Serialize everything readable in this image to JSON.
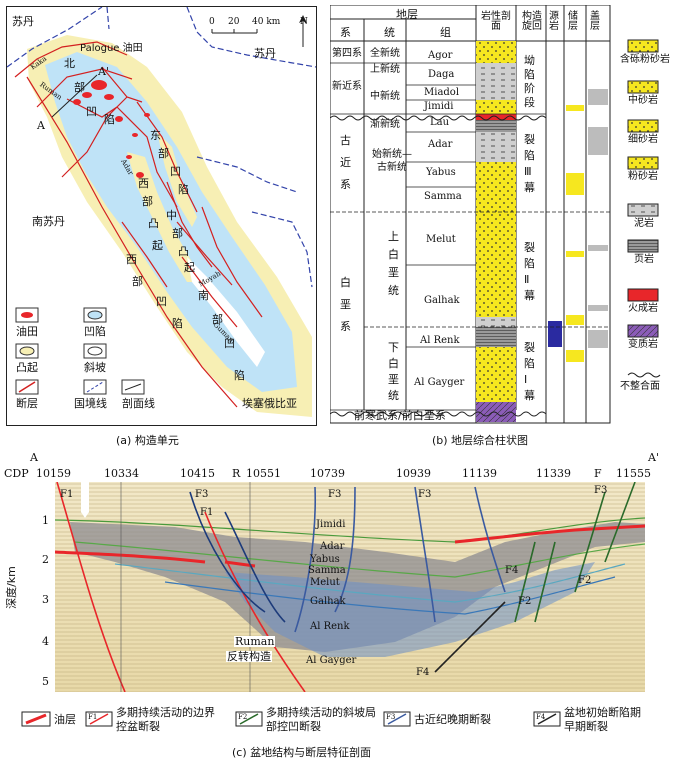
{
  "panel_a": {
    "caption": "(a) 构造单元",
    "countries": [
      "苏丹",
      "苏丹",
      "南苏丹",
      "埃塞俄比亚"
    ],
    "oilfield_label": "Palogue 油田",
    "scale_ticks": [
      "0",
      "20",
      "40 km"
    ],
    "north": "N",
    "section_ends": [
      "A",
      "A'"
    ],
    "units": [
      "北",
      "部",
      "凹",
      "陷",
      "东",
      "部",
      "凹",
      "陷",
      "西",
      "部",
      "凸",
      "起",
      "中",
      "部",
      "凸",
      "起",
      "西",
      "部",
      "凹",
      "陷",
      "南",
      "部",
      "凹",
      "陷"
    ],
    "fault_names": [
      "Kaka",
      "Ruman",
      "Adar",
      "Moyah",
      "Gumam"
    ],
    "legend": [
      {
        "label": "油田",
        "color": "#e8262a",
        "shape": "blob"
      },
      {
        "label": "凹陷",
        "color": "#bfe3f7",
        "shape": "oval"
      },
      {
        "label": "凸起",
        "color": "#f7efb4",
        "shape": "oval"
      },
      {
        "label": "斜坡",
        "color": "#ffffff",
        "shape": "oval"
      },
      {
        "label": "断层",
        "color": "#d32020",
        "shape": "line"
      },
      {
        "label": "国境线",
        "color": "#3344aa",
        "shape": "dash"
      },
      {
        "label": "剖面线",
        "color": "#222222",
        "shape": "section"
      }
    ]
  },
  "panel_b": {
    "caption": "(b) 地层综合柱状图",
    "header": {
      "strata": "地层",
      "system": "系",
      "series": "统",
      "formation": "组",
      "lithology": "岩性剖面",
      "cycle": "构造旋回",
      "source": "源岩",
      "reservoir": "储层",
      "seal": "盖层"
    },
    "systems": [
      "第四系",
      "新近系",
      "古近系",
      "白垩系"
    ],
    "series": [
      "全新统",
      "上新统",
      "中新统",
      "渐新统",
      "始新统—古新统",
      "上白垩统",
      "下白垩统"
    ],
    "formations": [
      "Agor",
      "Daga",
      "Miadol",
      "Jimidi",
      "Lau",
      "Adar",
      "Yabus",
      "Samma",
      "Melut",
      "Galhak",
      "Al Renk",
      "Al Gayger"
    ],
    "cycles": [
      "坳陷阶段",
      "裂陷Ⅲ幕",
      "裂陷Ⅱ幕",
      "裂陷Ⅰ幕"
    ],
    "basement": "前寒武系/前白垩系",
    "legend": [
      {
        "label": "含砾粉砂岩",
        "color": "#f6e71f"
      },
      {
        "label": "中砂岩",
        "color": "#f6e71f"
      },
      {
        "label": "细砂岩",
        "color": "#f6e71f"
      },
      {
        "label": "粉砂岩",
        "color": "#f6e71f"
      },
      {
        "label": "泥岩",
        "color": "#cfcfcf"
      },
      {
        "label": "页岩",
        "color": "#999999"
      },
      {
        "label": "火成岩",
        "color": "#e8262a"
      },
      {
        "label": "变质岩",
        "color": "#8b5cb8"
      },
      {
        "label": "不整合面",
        "color": "#ffffff"
      }
    ]
  },
  "panel_c": {
    "caption": "(c) 盆地结构与断层特征剖面",
    "left_end": "A",
    "right_end": "A'",
    "cdp_title": "CDP",
    "cdp_values": [
      "10159",
      "10334",
      "10415",
      "10551",
      "10739",
      "10939",
      "11139",
      "11339",
      "11555"
    ],
    "top_markers": [
      "R",
      "F"
    ],
    "depth_label": "深度/km",
    "depth_ticks": [
      "1",
      "2",
      "3",
      "4",
      "5"
    ],
    "horizons": [
      "Jimidi",
      "Adar",
      "Yabus",
      "Samma",
      "Melut",
      "Galhak",
      "Al Renk",
      "Al Gayger"
    ],
    "fault_labels": [
      "F1",
      "F3",
      "F1",
      "F3",
      "F3",
      "F4",
      "F2",
      "F2",
      "F3",
      "F4"
    ],
    "structure_label": [
      "Ruman",
      "反转构造"
    ],
    "legend": [
      {
        "sym": "",
        "label": "油层"
      },
      {
        "sym": "F1",
        "label": "多期持续活动的边界控盆断裂"
      },
      {
        "sym": "F2",
        "label": "多期持续活动的斜坡局部控凹断裂"
      },
      {
        "sym": "F3",
        "label": "古近纪晚期断裂"
      },
      {
        "sym": "F4",
        "label": "盆地初始断陷期早期断裂"
      }
    ]
  }
}
